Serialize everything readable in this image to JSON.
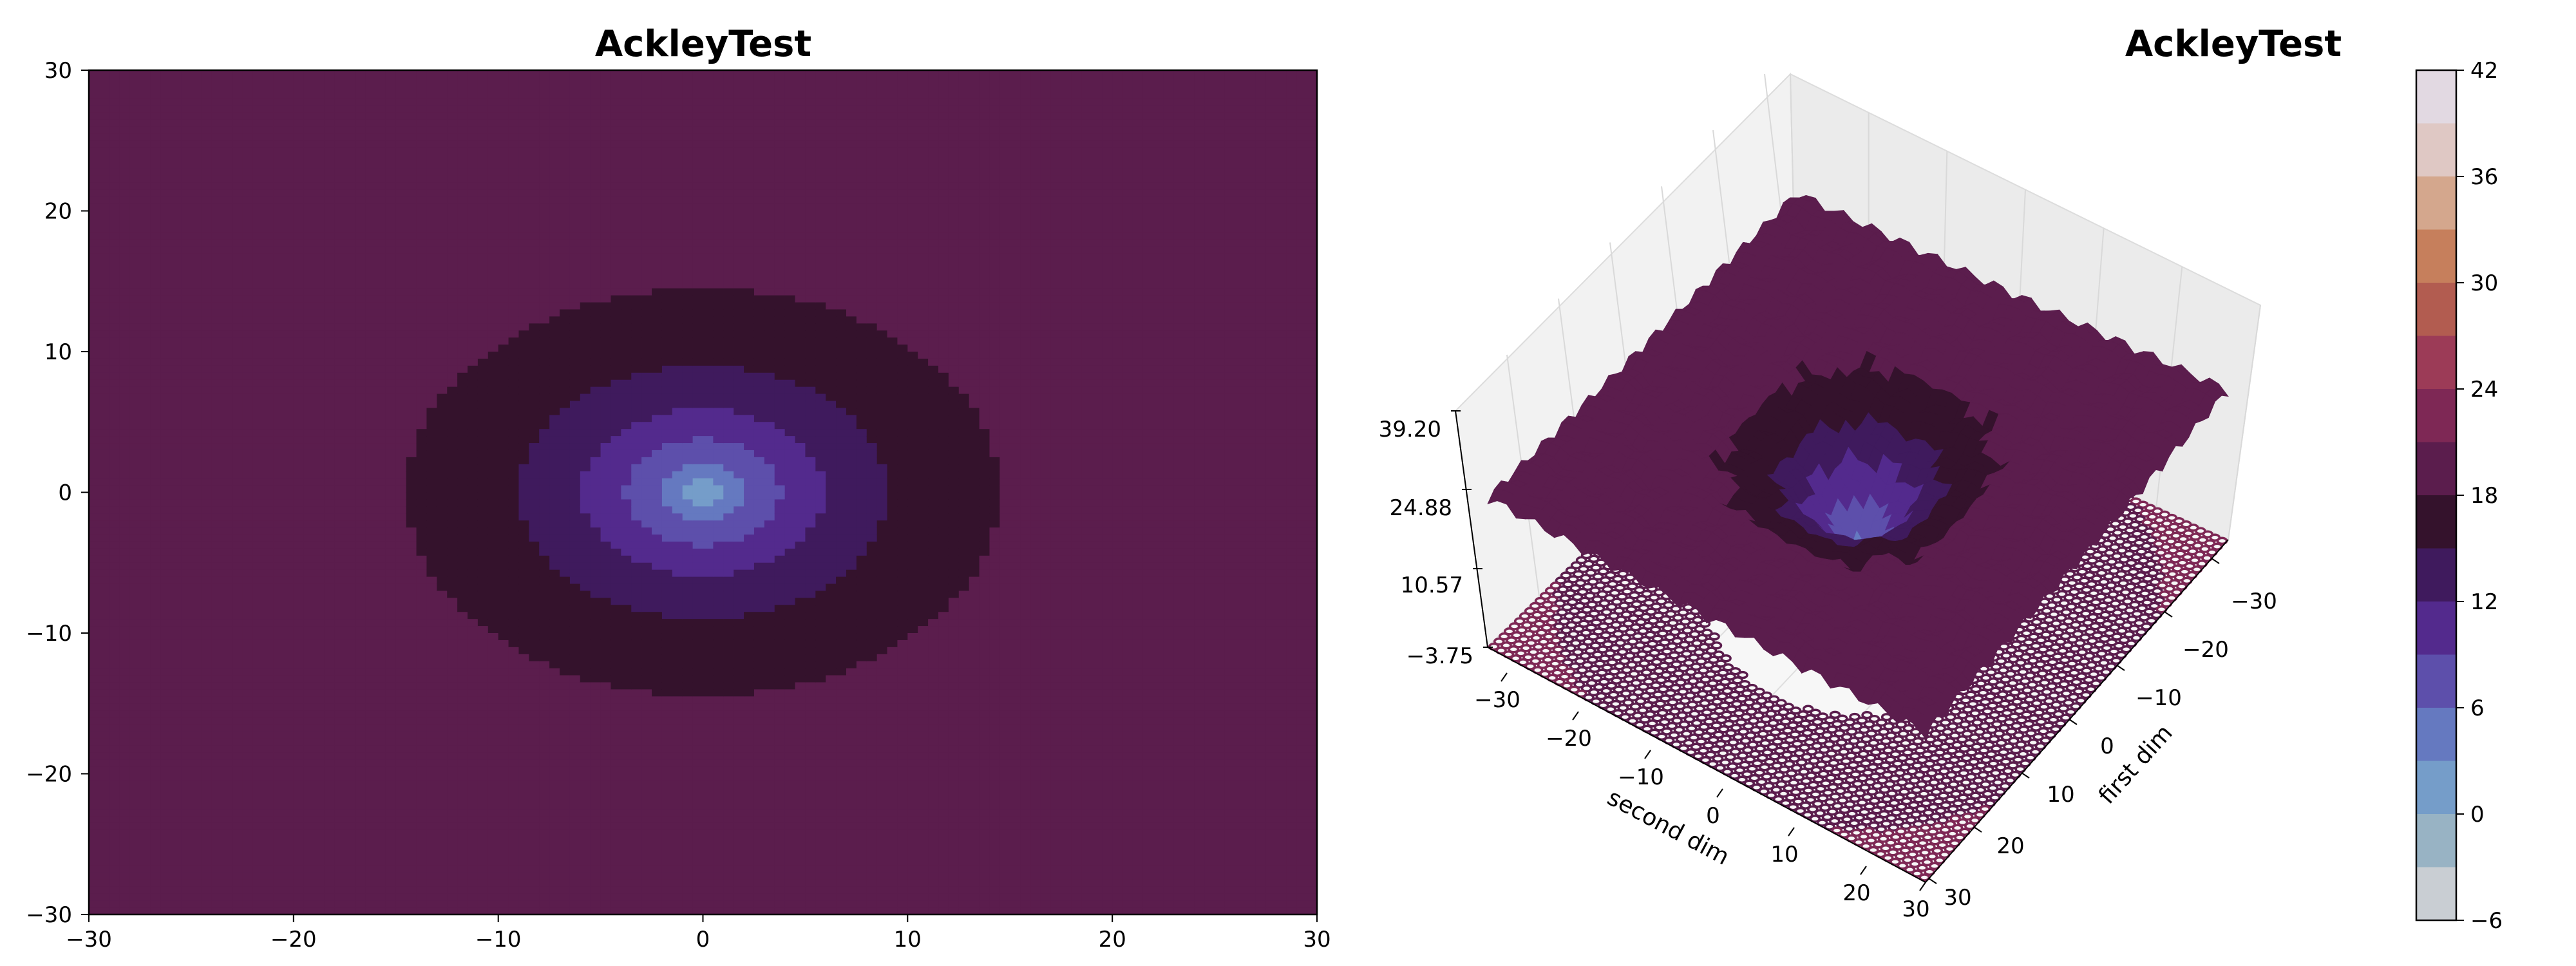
{
  "chart_data": [
    {
      "type": "heatmap",
      "subtype": "filled-contour",
      "title": "AckleyTest",
      "xlim": [
        -30,
        30
      ],
      "ylim": [
        -30,
        30
      ],
      "xticks": [
        -30,
        -20,
        -10,
        0,
        10,
        20,
        30
      ],
      "yticks": [
        -30,
        -20,
        -10,
        0,
        10,
        20,
        30
      ],
      "xtick_labels": [
        "−30",
        "−20",
        "−10",
        "0",
        "10",
        "20",
        "30"
      ],
      "ytick_labels": [
        "−30",
        "−20",
        "−10",
        "0",
        "10",
        "20",
        "30"
      ],
      "function": "ackley",
      "value_range": [
        -6,
        42
      ],
      "colormap": "twilight",
      "grid": false
    },
    {
      "type": "surface",
      "title": "AckleyTest",
      "xlabel": "first dim",
      "ylabel": "second dim",
      "xlim": [
        -30,
        30
      ],
      "ylim": [
        -30,
        30
      ],
      "first_dim_ticks": [
        "−30",
        "−20",
        "−10",
        "0",
        "10",
        "20",
        "30"
      ],
      "second_dim_ticks": [
        "−30",
        "−20",
        "−10",
        "0",
        "10",
        "20",
        "30"
      ],
      "z_ticks": [
        "39.20",
        "24.88",
        "10.57",
        "−3.75"
      ],
      "zlim": [
        -3.75,
        39.2
      ],
      "floor_projection": "contour",
      "colormap": "twilight",
      "grid": true
    }
  ],
  "colorbar": {
    "ticks": [
      "42",
      "36",
      "30",
      "24",
      "18",
      "12",
      "6",
      "0",
      "−6"
    ],
    "range": [
      -6,
      42
    ],
    "levels": 15
  },
  "colors": {
    "levels": [
      "#e2d9e2",
      "#c9ced3",
      "#98b3c4",
      "#759dc9",
      "#6579c0",
      "#5d4fab",
      "#532a8d",
      "#3f1a5d",
      "#34122c",
      "#5b1d4d",
      "#7e2855",
      "#9c3b57",
      "#b25c50",
      "#c67f5c",
      "#d4a78d",
      "#dfc8c4",
      "#e2d9e2"
    ]
  }
}
